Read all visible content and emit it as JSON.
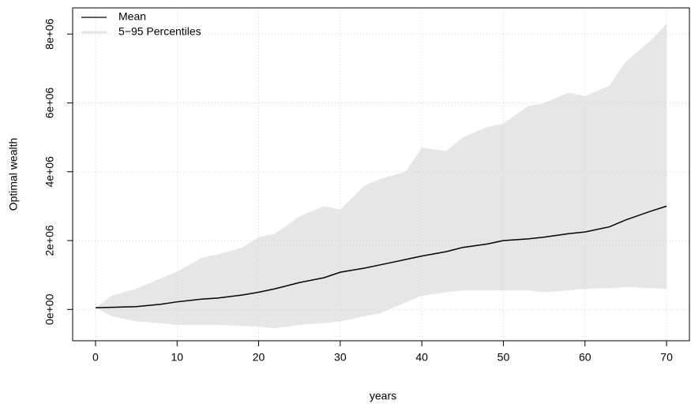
{
  "chart_data": {
    "type": "band-line",
    "x_label": "years",
    "y_label": "Optimal wealth",
    "x": [
      0,
      2,
      5,
      8,
      10,
      13,
      15,
      18,
      20,
      22,
      25,
      28,
      30,
      33,
      35,
      38,
      40,
      43,
      45,
      48,
      50,
      53,
      55,
      58,
      60,
      63,
      65,
      68,
      70
    ],
    "series": [
      {
        "name": "Mean",
        "color": "#000000",
        "values": [
          50000,
          60000,
          80000,
          150000,
          220000,
          300000,
          330000,
          420000,
          500000,
          600000,
          780000,
          920000,
          1080000,
          1200000,
          1300000,
          1450000,
          1550000,
          1680000,
          1800000,
          1900000,
          2000000,
          2050000,
          2100000,
          2200000,
          2250000,
          2400000,
          2600000,
          2850000,
          3000000
        ]
      },
      {
        "name": "5−95 Percentiles",
        "color": "#e6e6e6",
        "upper": [
          50000,
          400000,
          600000,
          900000,
          1100000,
          1500000,
          1600000,
          1800000,
          2100000,
          2200000,
          2700000,
          3000000,
          2900000,
          3600000,
          3800000,
          4000000,
          4700000,
          4600000,
          5000000,
          5300000,
          5400000,
          5900000,
          6000000,
          6300000,
          6200000,
          6500000,
          7200000,
          7800000,
          8300000
        ],
        "lower": [
          50000,
          -200000,
          -350000,
          -400000,
          -450000,
          -450000,
          -450000,
          -480000,
          -500000,
          -550000,
          -450000,
          -400000,
          -350000,
          -200000,
          -100000,
          200000,
          400000,
          500000,
          550000,
          550000,
          550000,
          550000,
          500000,
          550000,
          600000,
          620000,
          650000,
          620000,
          600000
        ]
      }
    ],
    "xlim": [
      -2.8,
      72.8
    ],
    "xticks": [
      0,
      10,
      20,
      30,
      40,
      50,
      60,
      70
    ],
    "ylim": [
      -910000,
      8760000
    ],
    "yticks": [
      {
        "value": 0,
        "label": "0e+00"
      },
      {
        "value": 2000000,
        "label": "2e+06"
      },
      {
        "value": 4000000,
        "label": "4e+06"
      },
      {
        "value": 6000000,
        "label": "6e+06"
      },
      {
        "value": 8000000,
        "label": "8e+06"
      }
    ],
    "grid": true,
    "legend": "top-left"
  }
}
